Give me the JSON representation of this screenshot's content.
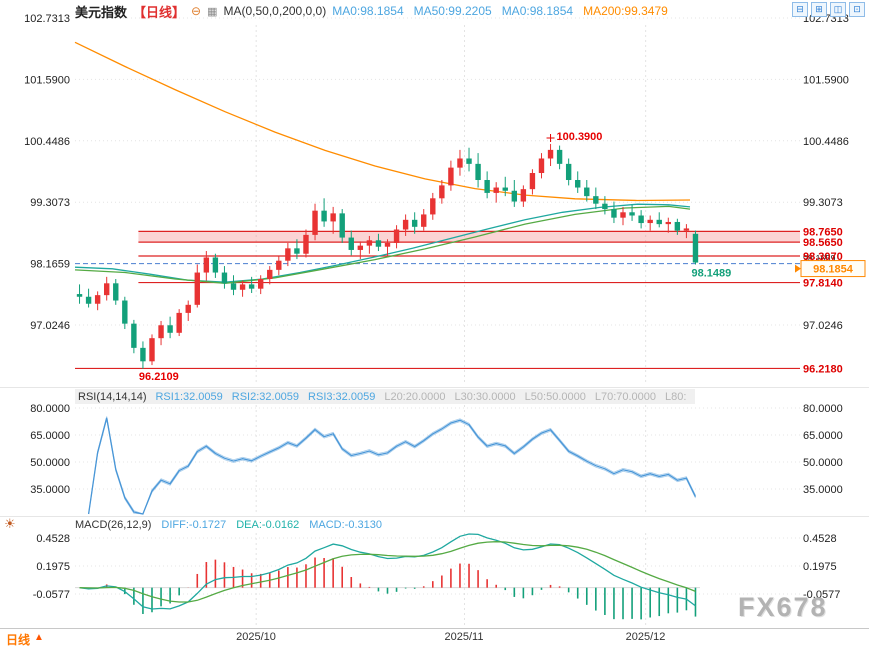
{
  "header": {
    "title": "美元指数",
    "timeframe": "【日线】",
    "indicator_label": "MA(0,50,0,200,0,0)",
    "icons": {
      "collapse": "⊖",
      "indicator": "▦",
      "toolbar": [
        {
          "name": "zoom-out-icon",
          "glyph": "⊟"
        },
        {
          "name": "zoom-in-icon",
          "glyph": "⊞"
        },
        {
          "name": "pan-left-icon",
          "glyph": "◫"
        },
        {
          "name": "pan-right-icon",
          "glyph": "⊡"
        }
      ],
      "macd_panel": "☀",
      "panel_toggle": "▲"
    },
    "ma_values": [
      {
        "label": "MA0:98.1854",
        "color": "#4da6e0"
      },
      {
        "label": "MA50:99.2205",
        "color": "#4da6e0"
      },
      {
        "label": "MA0:98.1854",
        "color": "#4da6e0"
      },
      {
        "label": "MA200:99.3479",
        "color": "#ff8c00"
      }
    ]
  },
  "rsi_header": {
    "items": [
      {
        "text": "RSI(14,14,14)",
        "color": "#333333"
      },
      {
        "text": "RSI1:32.0059",
        "color": "#4da6e0"
      },
      {
        "text": "RSI2:32.0059",
        "color": "#4da6e0"
      },
      {
        "text": "RSI3:32.0059",
        "color": "#4da6e0"
      },
      {
        "text": "L20:20.0000",
        "color": "#b5b5b5"
      },
      {
        "text": "L30:30.0000",
        "color": "#b5b5b5"
      },
      {
        "text": "L50:50.0000",
        "color": "#b5b5b5"
      },
      {
        "text": "L70:70.0000",
        "color": "#b5b5b5"
      },
      {
        "text": "L80:",
        "color": "#b5b5b5"
      }
    ]
  },
  "macd_header": {
    "items": [
      {
        "text": "MACD(26,12,9)",
        "color": "#333333"
      },
      {
        "text": "DIFF:-0.1727",
        "color": "#4da6e0"
      },
      {
        "text": "DEA:-0.0162",
        "color": "#20b2aa"
      },
      {
        "text": "MACD:-0.3130",
        "color": "#4da6e0"
      }
    ]
  },
  "bottom": {
    "timeframe": "日线",
    "arrow": "▲"
  },
  "watermark": "FX678",
  "chart_data": [
    {
      "type": "candlestick",
      "title": "美元指数 日线",
      "price_axis": {
        "ticks": [
          102.7313,
          101.59,
          100.4486,
          99.3073,
          98.1659,
          97.0246
        ],
        "labels": [
          "102.7313",
          "101.5900",
          "100.4486",
          "99.3073",
          "98.1659",
          "97.0246"
        ]
      },
      "colors": {
        "up": "#e83333",
        "down": "#13a07a",
        "resistance": "#dd2222",
        "band_fill": "rgba(243,122,122,0.32)",
        "dashed": "#4a7fd0",
        "sr_label": "#dd0000",
        "axis_text": "#222222"
      },
      "dashed_line": {
        "value": 98.1659,
        "color": "#4a7fd0"
      },
      "current_price": {
        "value": 98.1854,
        "label": "98.1854",
        "color": "#ff8800"
      },
      "band": {
        "from": 98.765,
        "to": 98.565,
        "from_index": 7
      },
      "sr_lines": [
        {
          "value": 98.765,
          "label": "98.7650",
          "from_index": 7
        },
        {
          "value": 98.565,
          "label": "98.5650",
          "from_index": 7
        },
        {
          "value": 98.307,
          "label": "98.3070",
          "from_index": 7
        },
        {
          "value": 97.814,
          "label": "97.8140",
          "from_index": 7
        },
        {
          "value": 96.218,
          "label": "96.2180",
          "from_index": 0
        }
      ],
      "annotations": [
        {
          "text": "100.3900",
          "index": 52,
          "price": 100.39,
          "placement": "above",
          "color": "#e60000"
        },
        {
          "text": "98.1489",
          "index": 68,
          "price": 98.1489,
          "placement": "below",
          "color": "#13a07a"
        },
        {
          "text": "96.2109",
          "index": 7,
          "price": 96.2109,
          "placement": "below",
          "color": "#e60000"
        }
      ],
      "ma_lines": [
        {
          "name": "MA200",
          "color": "#ff8c00",
          "points": [
            [
              0,
              102.28
            ],
            [
              0.08,
              101.83
            ],
            [
              0.16,
              101.4
            ],
            [
              0.24,
              100.99
            ],
            [
              0.32,
              100.61
            ],
            [
              0.4,
              100.27
            ],
            [
              0.48,
              99.98
            ],
            [
              0.56,
              99.74
            ],
            [
              0.64,
              99.56
            ],
            [
              0.72,
              99.44
            ],
            [
              0.8,
              99.37
            ],
            [
              0.9,
              99.34
            ],
            [
              0.984,
              99.3479
            ]
          ]
        },
        {
          "name": "MA50",
          "color": "#1fa8a0",
          "points": [
            [
              0,
              98.1
            ],
            [
              0.06,
              98.07
            ],
            [
              0.12,
              97.97
            ],
            [
              0.18,
              97.86
            ],
            [
              0.24,
              97.82
            ],
            [
              0.3,
              97.88
            ],
            [
              0.36,
              98.0
            ],
            [
              0.42,
              98.14
            ],
            [
              0.48,
              98.29
            ],
            [
              0.54,
              98.45
            ],
            [
              0.6,
              98.63
            ],
            [
              0.66,
              98.81
            ],
            [
              0.72,
              98.98
            ],
            [
              0.78,
              99.12
            ],
            [
              0.84,
              99.21
            ],
            [
              0.9,
              99.27
            ],
            [
              0.95,
              99.26
            ],
            [
              0.984,
              99.2205
            ]
          ]
        },
        {
          "name": "MA-aux",
          "color": "#55aa44",
          "points": [
            [
              0,
              98.05
            ],
            [
              0.08,
              98.0
            ],
            [
              0.16,
              97.88
            ],
            [
              0.24,
              97.8
            ],
            [
              0.32,
              97.9
            ],
            [
              0.4,
              98.07
            ],
            [
              0.48,
              98.24
            ],
            [
              0.56,
              98.44
            ],
            [
              0.64,
              98.66
            ],
            [
              0.72,
              98.9
            ],
            [
              0.8,
              99.08
            ],
            [
              0.88,
              99.2
            ],
            [
              0.95,
              99.23
            ],
            [
              0.984,
              99.18
            ]
          ]
        }
      ],
      "months": [
        {
          "label": "2025/10",
          "index": 20
        },
        {
          "label": "2025/11",
          "index": 43
        },
        {
          "label": "2025/12",
          "index": 63
        }
      ],
      "candles": [
        [
          "09/03",
          97.6,
          97.78,
          97.42,
          97.55
        ],
        [
          "09/04",
          97.55,
          97.7,
          97.35,
          97.42
        ],
        [
          "09/05",
          97.42,
          97.65,
          97.3,
          97.58
        ],
        [
          "09/08",
          97.58,
          97.92,
          97.48,
          97.8
        ],
        [
          "09/09",
          97.8,
          97.88,
          97.4,
          97.48
        ],
        [
          "09/10",
          97.48,
          97.55,
          96.95,
          97.05
        ],
        [
          "09/11",
          97.05,
          97.12,
          96.5,
          96.6
        ],
        [
          "09/12",
          96.6,
          96.72,
          96.2109,
          96.35
        ],
        [
          "09/15",
          96.35,
          96.85,
          96.28,
          96.78
        ],
        [
          "09/16",
          96.78,
          97.1,
          96.65,
          97.02
        ],
        [
          "09/17",
          97.02,
          97.18,
          96.78,
          96.88
        ],
        [
          "09/18",
          96.88,
          97.32,
          96.82,
          97.25
        ],
        [
          "09/19",
          97.25,
          97.48,
          97.1,
          97.4
        ],
        [
          "09/22",
          97.4,
          98.15,
          97.35,
          98.0
        ],
        [
          "09/23",
          98.0,
          98.4,
          97.85,
          98.28
        ],
        [
          "09/24",
          98.28,
          98.35,
          97.9,
          98.0
        ],
        [
          "09/25",
          98.0,
          98.12,
          97.7,
          97.8
        ],
        [
          "09/26",
          97.8,
          97.95,
          97.58,
          97.68
        ],
        [
          "09/29",
          97.68,
          97.85,
          97.55,
          97.78
        ],
        [
          "09/30",
          97.78,
          97.92,
          97.62,
          97.7
        ],
        [
          "10/01",
          97.7,
          97.95,
          97.6,
          97.88
        ],
        [
          "10/02",
          97.88,
          98.12,
          97.78,
          98.05
        ],
        [
          "10/03",
          98.05,
          98.3,
          97.95,
          98.22
        ],
        [
          "10/06",
          98.22,
          98.55,
          98.12,
          98.45
        ],
        [
          "10/07",
          98.45,
          98.62,
          98.25,
          98.35
        ],
        [
          "10/08",
          98.35,
          98.8,
          98.28,
          98.7
        ],
        [
          "10/09",
          98.7,
          99.28,
          98.6,
          99.15
        ],
        [
          "10/10",
          99.15,
          99.38,
          98.85,
          98.95
        ],
        [
          "10/13",
          98.95,
          99.22,
          98.72,
          99.1
        ],
        [
          "10/14",
          99.1,
          99.18,
          98.55,
          98.65
        ],
        [
          "10/15",
          98.65,
          98.78,
          98.32,
          98.42
        ],
        [
          "10/16",
          98.42,
          98.58,
          98.25,
          98.5
        ],
        [
          "10/17",
          98.5,
          98.68,
          98.35,
          98.6
        ],
        [
          "10/20",
          98.6,
          98.72,
          98.4,
          98.48
        ],
        [
          "10/21",
          98.48,
          98.62,
          98.32,
          98.55
        ],
        [
          "10/22",
          98.55,
          98.88,
          98.45,
          98.8
        ],
        [
          "10/23",
          98.8,
          99.08,
          98.68,
          98.98
        ],
        [
          "10/24",
          98.98,
          99.12,
          98.72,
          98.85
        ],
        [
          "10/27",
          98.85,
          99.18,
          98.78,
          99.08
        ],
        [
          "10/28",
          99.08,
          99.48,
          98.98,
          99.38
        ],
        [
          "10/29",
          99.38,
          99.72,
          99.28,
          99.62
        ],
        [
          "10/30",
          99.62,
          100.08,
          99.52,
          99.95
        ],
        [
          "10/31",
          99.95,
          100.28,
          99.8,
          100.12
        ],
        [
          "11/03",
          100.12,
          100.32,
          99.88,
          100.02
        ],
        [
          "11/04",
          100.02,
          100.22,
          99.58,
          99.72
        ],
        [
          "11/05",
          99.72,
          99.88,
          99.38,
          99.48
        ],
        [
          "11/06",
          99.48,
          99.68,
          99.3,
          99.58
        ],
        [
          "11/07",
          99.58,
          99.78,
          99.42,
          99.52
        ],
        [
          "11/10",
          99.52,
          99.72,
          99.22,
          99.32
        ],
        [
          "11/11",
          99.32,
          99.62,
          99.22,
          99.55
        ],
        [
          "11/12",
          99.55,
          99.92,
          99.45,
          99.85
        ],
        [
          "11/13",
          99.85,
          100.22,
          99.75,
          100.12
        ],
        [
          "11/14",
          100.12,
          100.39,
          99.98,
          100.28
        ],
        [
          "11/17",
          100.28,
          100.36,
          99.92,
          100.02
        ],
        [
          "11/18",
          100.02,
          100.12,
          99.62,
          99.72
        ],
        [
          "11/19",
          99.72,
          99.88,
          99.48,
          99.58
        ],
        [
          "11/20",
          99.58,
          99.72,
          99.32,
          99.42
        ],
        [
          "11/21",
          99.42,
          99.58,
          99.18,
          99.28
        ],
        [
          "11/24",
          99.28,
          99.42,
          99.08,
          99.18
        ],
        [
          "11/25",
          99.18,
          99.32,
          98.92,
          99.02
        ],
        [
          "11/26",
          99.02,
          99.22,
          98.88,
          99.12
        ],
        [
          "11/27",
          99.12,
          99.26,
          98.96,
          99.06
        ],
        [
          "11/28",
          99.06,
          99.16,
          98.82,
          98.92
        ],
        [
          "12/01",
          98.92,
          99.06,
          98.78,
          98.98
        ],
        [
          "12/02",
          98.98,
          99.12,
          98.84,
          98.9
        ],
        [
          "12/03",
          98.9,
          99.02,
          98.74,
          98.94
        ],
        [
          "12/04",
          98.94,
          99.0,
          98.7,
          98.78
        ],
        [
          "12/05",
          98.78,
          98.9,
          98.64,
          98.82
        ],
        [
          "12/08",
          98.72,
          98.78,
          98.1489,
          98.1854
        ]
      ]
    },
    {
      "type": "line",
      "name": "RSI",
      "params": "RSI(14,14,14)",
      "period": 14,
      "current_values": {
        "RSI1": 32.0059,
        "RSI2": 32.0059,
        "RSI3": 32.0059
      },
      "levels": {
        "L20": 20.0,
        "L30": 30.0,
        "L50": 50.0,
        "L70": 70.0
      },
      "axis": {
        "ticks": [
          80,
          65,
          50,
          35
        ],
        "labels": [
          "80.0000",
          "65.0000",
          "50.0000",
          "35.0000"
        ]
      },
      "color": "#4a97d8"
    },
    {
      "type": "macd",
      "params": "MACD(26,12,9)",
      "values": {
        "DIFF": -0.1727,
        "DEA": -0.0162,
        "MACD": -0.313
      },
      "axis": {
        "ticks": [
          0.4528,
          0.1975,
          -0.0577
        ],
        "labels": [
          "0.4528",
          "0.1975",
          "-0.0577"
        ]
      },
      "colors": {
        "diff": "#1fa8a0",
        "dea": "#55aa44",
        "hist_pos": "#e83333",
        "hist_neg": "#13a07a"
      }
    }
  ]
}
